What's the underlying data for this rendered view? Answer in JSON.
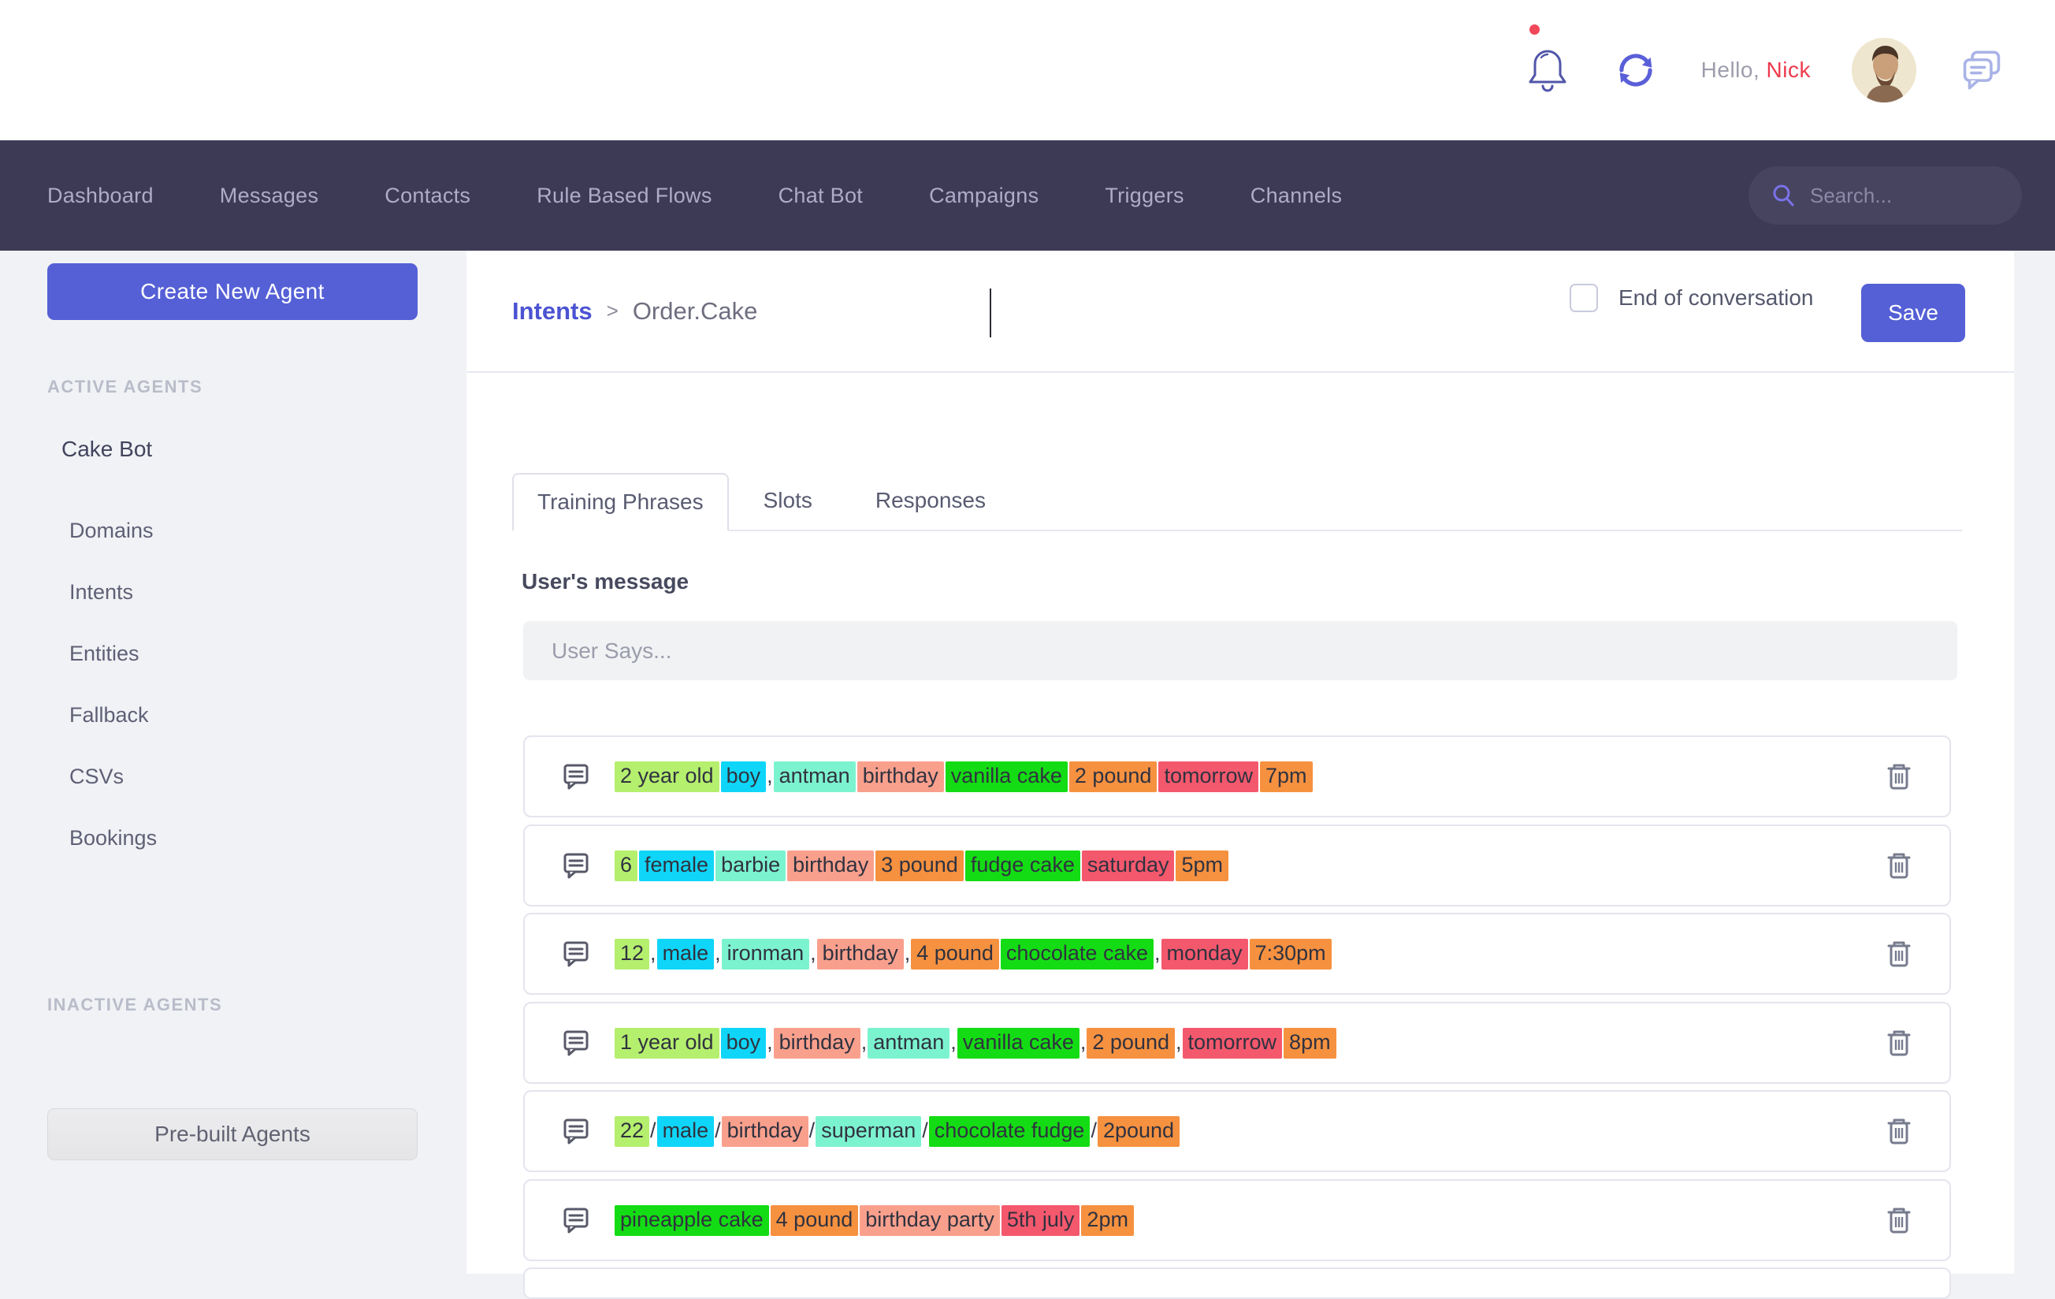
{
  "header": {
    "greeting_prefix": "Hello,",
    "user_name": "Nick"
  },
  "navbar": {
    "items": [
      "Dashboard",
      "Messages",
      "Contacts",
      "Rule Based Flows",
      "Chat Bot",
      "Campaigns",
      "Triggers",
      "Channels"
    ],
    "search_placeholder": "Search..."
  },
  "sidebar": {
    "create_button": "Create New Agent",
    "active_section": "ACTIVE AGENTS",
    "agent": "Cake Bot",
    "items": [
      "Domains",
      "Intents",
      "Entities",
      "Fallback",
      "CSVs",
      "Bookings"
    ],
    "inactive_section": "INACTIVE AGENTS",
    "prebuilt_button": "Pre-built Agents"
  },
  "main": {
    "breadcrumb": {
      "parent": "Intents",
      "separator": ">",
      "current": "Order.Cake"
    },
    "end_of_conversation_label": "End of conversation",
    "checkbox_checked": false,
    "save_label": "Save",
    "tabs": [
      "Training Phrases",
      "Slots",
      "Responses"
    ],
    "active_tab": "Training Phrases",
    "section_title": "User's message",
    "input_placeholder": "User Says...",
    "entity_colors": {
      "green_light": "#b5ef6e",
      "cyan": "#0fd6f8",
      "aqua": "#7cf3cf",
      "salmon": "#f9a08d",
      "green": "#14dc14",
      "orange": "#f69140",
      "red": "#f4586d"
    },
    "phrases": [
      [
        {
          "t": "2 year old",
          "c": "green_light"
        },
        {
          "t": " "
        },
        {
          "t": "boy",
          "c": "cyan"
        },
        {
          "t": ","
        },
        {
          "t": "antman",
          "c": "aqua"
        },
        {
          "t": " "
        },
        {
          "t": "birthday",
          "c": "salmon"
        },
        {
          "t": " "
        },
        {
          "t": "vanilla cake",
          "c": "green"
        },
        {
          "t": " "
        },
        {
          "t": "2 pound",
          "c": "orange"
        },
        {
          "t": " "
        },
        {
          "t": "tomorrow",
          "c": "red"
        },
        {
          "t": " "
        },
        {
          "t": "7pm",
          "c": "orange"
        }
      ],
      [
        {
          "t": "6",
          "c": "green_light"
        },
        {
          "t": " "
        },
        {
          "t": "female",
          "c": "cyan"
        },
        {
          "t": " "
        },
        {
          "t": "barbie",
          "c": "aqua"
        },
        {
          "t": " "
        },
        {
          "t": "birthday",
          "c": "salmon"
        },
        {
          "t": " "
        },
        {
          "t": "3 pound",
          "c": "orange"
        },
        {
          "t": " "
        },
        {
          "t": "fudge cake",
          "c": "green"
        },
        {
          "t": " "
        },
        {
          "t": "saturday",
          "c": "red"
        },
        {
          "t": " "
        },
        {
          "t": "5pm",
          "c": "orange"
        }
      ],
      [
        {
          "t": "12",
          "c": "green_light"
        },
        {
          "t": ","
        },
        {
          "t": "male",
          "c": "cyan"
        },
        {
          "t": ","
        },
        {
          "t": "ironman",
          "c": "aqua"
        },
        {
          "t": ","
        },
        {
          "t": "birthday",
          "c": "salmon"
        },
        {
          "t": ","
        },
        {
          "t": "4 pound",
          "c": "orange"
        },
        {
          "t": " "
        },
        {
          "t": "chocolate cake",
          "c": "green"
        },
        {
          "t": ","
        },
        {
          "t": "monday",
          "c": "red"
        },
        {
          "t": " "
        },
        {
          "t": "7:30pm",
          "c": "orange"
        }
      ],
      [
        {
          "t": "1 year old",
          "c": "green_light"
        },
        {
          "t": " "
        },
        {
          "t": "boy",
          "c": "cyan"
        },
        {
          "t": ","
        },
        {
          "t": "birthday",
          "c": "salmon"
        },
        {
          "t": ","
        },
        {
          "t": "antman",
          "c": "aqua"
        },
        {
          "t": ","
        },
        {
          "t": "vanilla cake",
          "c": "green"
        },
        {
          "t": ","
        },
        {
          "t": "2 pound",
          "c": "orange"
        },
        {
          "t": ","
        },
        {
          "t": "tomorrow",
          "c": "red"
        },
        {
          "t": " "
        },
        {
          "t": "8pm",
          "c": "orange"
        }
      ],
      [
        {
          "t": "22",
          "c": "green_light"
        },
        {
          "t": "/"
        },
        {
          "t": "male",
          "c": "cyan"
        },
        {
          "t": "/"
        },
        {
          "t": "birthday",
          "c": "salmon"
        },
        {
          "t": "/"
        },
        {
          "t": "superman",
          "c": "aqua"
        },
        {
          "t": "/"
        },
        {
          "t": "chocolate fudge",
          "c": "green"
        },
        {
          "t": "/"
        },
        {
          "t": "2pound",
          "c": "orange"
        }
      ],
      [
        {
          "t": "pineapple cake",
          "c": "green"
        },
        {
          "t": " "
        },
        {
          "t": "4 pound",
          "c": "orange"
        },
        {
          "t": " "
        },
        {
          "t": "birthday party",
          "c": "salmon"
        },
        {
          "t": " "
        },
        {
          "t": "5th july",
          "c": "red"
        },
        {
          "t": " "
        },
        {
          "t": "2pm",
          "c": "orange"
        }
      ]
    ]
  }
}
